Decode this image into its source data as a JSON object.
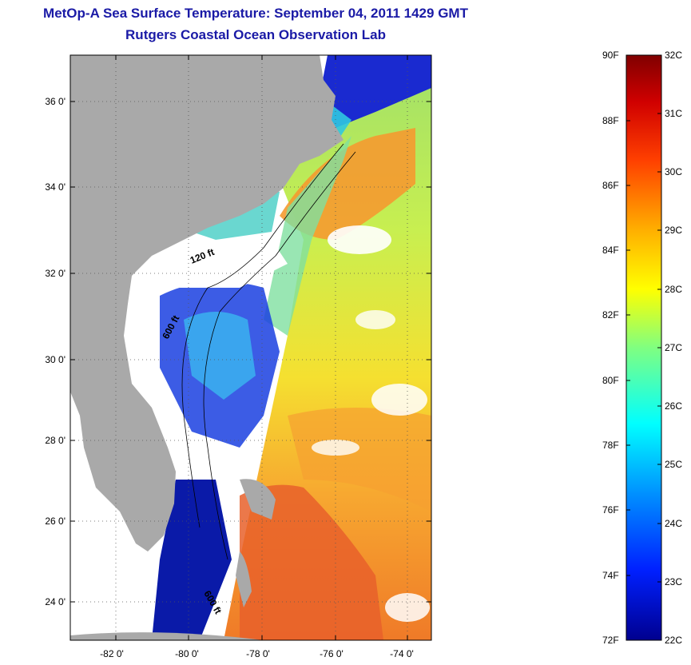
{
  "title": {
    "line1": "MetOp-A Sea Surface Temperature:  September 04, 2011 1429 GMT",
    "line2": "Rutgers Coastal Ocean Observation Lab"
  },
  "map": {
    "y_ticks": [
      "36 0'",
      "34 0'",
      "32 0'",
      "30 0'",
      "28 0'",
      "26 0'",
      "24 0'"
    ],
    "x_ticks": [
      "-82 0'",
      "-80 0'",
      "-78 0'",
      "-76 0'",
      "-74 0'"
    ],
    "isobath_labels": [
      "120 ft",
      "600 ft",
      "600 ft"
    ],
    "colors": {
      "land": "#a9a9a9",
      "cloud": "#ffffff",
      "cold": "#0a1aa8",
      "warm": "#e8601e"
    }
  },
  "colorbar": {
    "fahrenheit": [
      "90F",
      "88F",
      "86F",
      "84F",
      "82F",
      "80F",
      "78F",
      "76F",
      "74F",
      "72F"
    ],
    "celsius": [
      "32C",
      "31C",
      "30C",
      "29C",
      "28C",
      "27C",
      "26C",
      "25C",
      "24C",
      "23C",
      "22C"
    ],
    "range_c": [
      22,
      32
    ],
    "range_f": [
      72,
      90
    ]
  }
}
